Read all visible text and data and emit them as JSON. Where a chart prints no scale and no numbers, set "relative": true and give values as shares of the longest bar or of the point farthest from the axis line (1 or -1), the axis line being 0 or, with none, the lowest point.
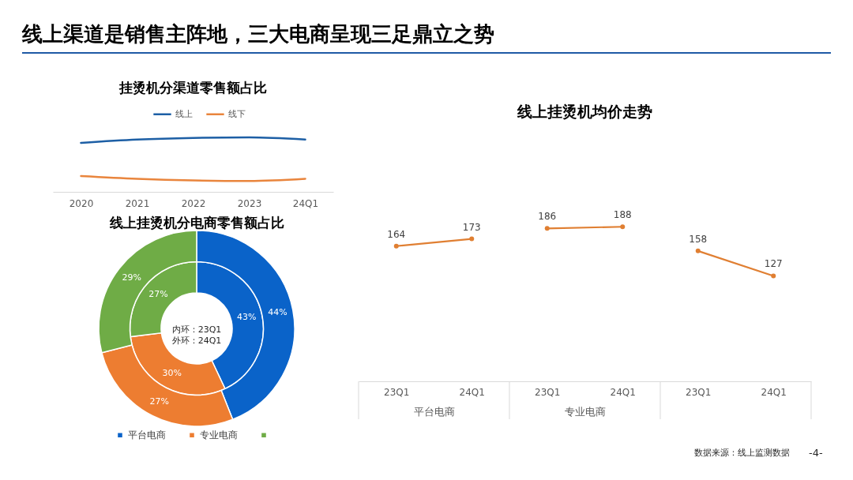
{
  "chart_data": [
    {
      "type": "other",
      "title": "线上渠道是销售主阵地，三大电商呈现三足鼎立之势",
      "annotations": [
        "数据来源：线上监测数据",
        "-4-"
      ]
    },
    {
      "type": "line",
      "title": "挂烫机分渠道零售额占比",
      "categories": [
        "2020",
        "2021",
        "2022",
        "2023",
        "24Q1"
      ],
      "relative": true,
      "series": [
        {
          "name": "线上",
          "color": "#1D5FA5",
          "values": [
            0.9,
            0.96,
            0.99,
            1,
            0.96
          ]
        },
        {
          "name": "线下",
          "color": "#E9853D",
          "values": [
            0.29,
            0.24,
            0.21,
            0.2,
            0.24
          ]
        }
      ],
      "legend": "top"
    },
    {
      "type": "donut",
      "title": "线上挂烫机分电商零售额占比",
      "categories": [
        "平台电商",
        "专业电商",
        null
      ],
      "colors": [
        "#0A63C9",
        "#ED7D31",
        "#6FAC46"
      ],
      "series": [
        {
          "values": [
            43,
            30,
            27
          ],
          "value_labels": [
            "43%",
            "30%",
            "27%"
          ]
        },
        {
          "values": [
            44,
            27,
            29
          ],
          "value_labels": [
            "44%",
            "27%",
            "29%"
          ]
        }
      ],
      "annotations": [
        "内环：23Q1",
        "外环：24Q1"
      ],
      "legend": "bottom"
    },
    {
      "type": "line",
      "title": "线上挂烫机均价走势",
      "categories": [
        "23Q1",
        "24Q1",
        "23Q1",
        "24Q1",
        "23Q1",
        "24Q1"
      ],
      "series": [
        {
          "color": "#E07F32",
          "values": [
            164,
            173,
            null,
            null,
            null,
            null
          ]
        },
        {
          "color": "#E07F32",
          "values": [
            null,
            null,
            186,
            188,
            null,
            null
          ]
        },
        {
          "color": "#E07F32",
          "values": [
            null,
            null,
            null,
            null,
            158,
            127
          ]
        }
      ],
      "annotations": [
        "平台电商",
        "专业电商"
      ],
      "marker": "circle",
      "data_labels": true,
      "tick_labels": "x"
    }
  ]
}
